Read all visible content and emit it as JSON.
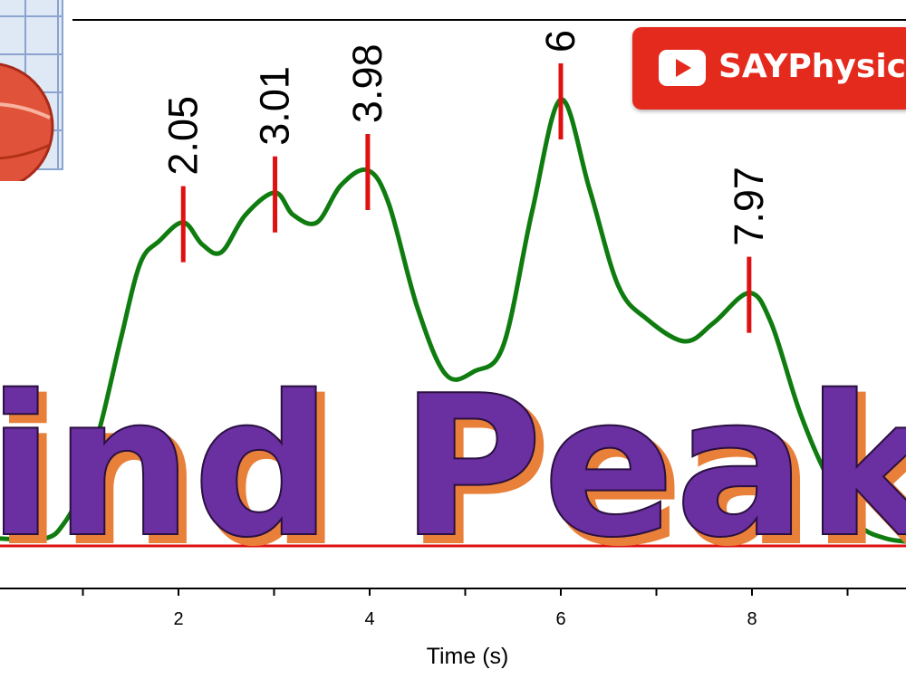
{
  "chart_data": {
    "type": "line",
    "xlabel": "Time (s)",
    "ylabel": "",
    "xlim": [
      0.1,
      10
    ],
    "ylim": [
      0,
      6.7
    ],
    "x_ticks": [
      2,
      4,
      6,
      8
    ],
    "series": [
      {
        "color": "#0f7c0f",
        "x": [
          0.1,
          0.6,
          0.8,
          1.0,
          1.2,
          1.4,
          1.6,
          1.8,
          2.05,
          2.25,
          2.45,
          2.7,
          3.01,
          3.2,
          3.45,
          3.7,
          3.98,
          4.2,
          4.5,
          4.8,
          5.1,
          5.4,
          5.7,
          6.0,
          6.3,
          6.6,
          6.9,
          7.3,
          7.6,
          7.97,
          8.2,
          8.5,
          8.8,
          9.1,
          9.4,
          9.7,
          10.0
        ],
        "y": [
          0.1,
          0.1,
          0.3,
          0.8,
          1.7,
          2.8,
          3.8,
          4.1,
          4.35,
          4.05,
          3.95,
          4.45,
          4.75,
          4.45,
          4.35,
          4.85,
          5.05,
          4.6,
          3.2,
          2.3,
          2.35,
          2.7,
          4.5,
          6.0,
          4.8,
          3.5,
          3.05,
          2.75,
          3.0,
          3.4,
          3.0,
          1.8,
          0.9,
          0.3,
          0.1,
          0.05,
          0.0
        ]
      }
    ],
    "baseline": {
      "y": 0,
      "color": "#e01010"
    },
    "peaks": [
      {
        "x": 2.05,
        "y": 4.35,
        "label": "2.05"
      },
      {
        "x": 3.01,
        "y": 4.75,
        "label": "3.01"
      },
      {
        "x": 3.98,
        "y": 5.05,
        "label": "3.98"
      },
      {
        "x": 6.0,
        "y": 6.0,
        "label": "6"
      },
      {
        "x": 7.97,
        "y": 3.4,
        "label": "7.97"
      }
    ],
    "overlay_text": "Find Peaks"
  },
  "banner": {
    "label": "SAYPhysics",
    "icon": "youtube-play-icon",
    "color": "#e42a1d"
  },
  "logo": {
    "icon": "origin-logo-icon"
  },
  "colors": {
    "curve": "#0f7c0f",
    "marker": "#e01010",
    "overlay_fill": "#6a2fa0",
    "overlay_shadow": "#e8803a"
  }
}
